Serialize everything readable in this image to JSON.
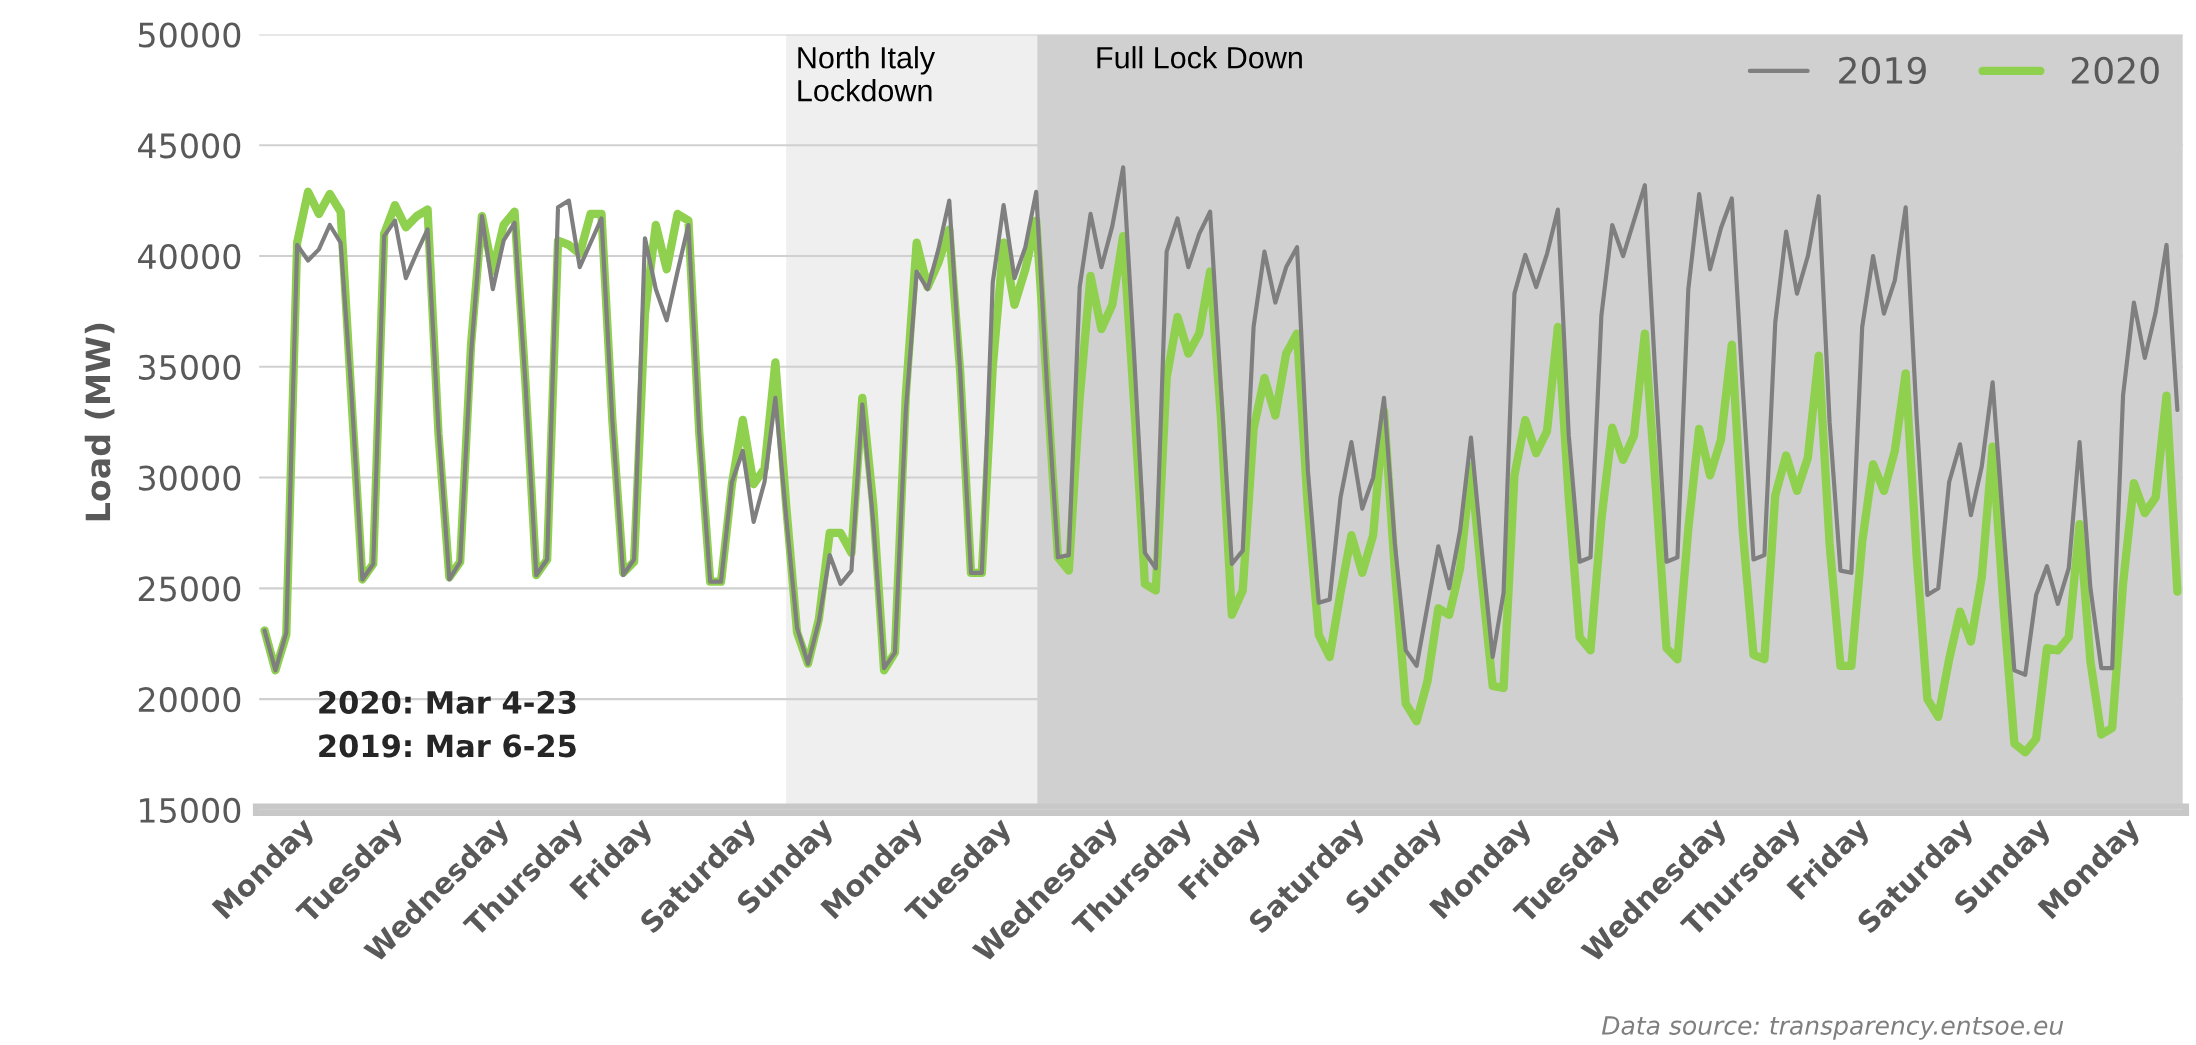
{
  "chart_data": {
    "type": "line",
    "ylabel": "Load (MW)",
    "ylim": [
      15000,
      50000
    ],
    "yticks": [
      15000,
      20000,
      25000,
      30000,
      35000,
      40000,
      45000,
      50000
    ],
    "categories": [
      "Monday",
      null,
      null,
      null,
      null,
      null,
      null,
      null,
      "Tuesday",
      null,
      null,
      null,
      null,
      null,
      null,
      null,
      "Wednesday",
      null,
      null,
      null,
      null,
      null,
      null,
      null,
      "Thursday",
      null,
      null,
      null,
      null,
      null,
      null,
      null,
      "Friday",
      null,
      null,
      null,
      null,
      null,
      null,
      null,
      "Saturday",
      null,
      null,
      null,
      null,
      null,
      null,
      null,
      "Sunday",
      null,
      null,
      null,
      null,
      null,
      null,
      null,
      "Monday",
      null,
      null,
      null,
      null,
      null,
      null,
      null,
      "Tuesday",
      null,
      null,
      null,
      null,
      null,
      null,
      null,
      "Wednesday",
      null,
      null,
      null,
      null,
      null,
      null,
      null,
      "Thursday",
      null,
      null,
      null,
      null,
      null,
      null,
      null,
      "Friday",
      null,
      null,
      null,
      null,
      null,
      null,
      null,
      "Saturday",
      null,
      null,
      null,
      null,
      null,
      null,
      null,
      "Sunday",
      null,
      null,
      null,
      null,
      null,
      null,
      null,
      "Monday",
      null,
      null,
      null,
      null,
      null,
      null,
      null,
      "Tuesday",
      null,
      null,
      null,
      null,
      null,
      null,
      null,
      "Wednesday",
      null,
      null,
      null,
      null,
      null,
      null,
      null,
      "Thursday",
      null,
      null,
      null,
      null,
      null,
      null,
      null,
      "Friday",
      null,
      null,
      null,
      null,
      null,
      null,
      null,
      "Saturday",
      null,
      null,
      null,
      null,
      null,
      null,
      null,
      "Sunday",
      null,
      null,
      null,
      null,
      null,
      null,
      null,
      "Monday",
      null,
      null,
      null,
      null,
      null,
      null,
      null,
      null
    ],
    "grid": "y",
    "legend": "top right",
    "marker": "none",
    "line_style": "solid",
    "annotations": [
      "2020: Mar 4-23\n2019: Mar 6-25",
      "Data source: transparency.entsoe.eu",
      "North Italy\nLockdown",
      "Full Lock Down"
    ],
    "series": [
      {
        "name": "2019",
        "color": "#7f7f7f",
        "values": [
          23100,
          21300,
          23000,
          40500,
          39800,
          40300,
          41400,
          40600,
          33800,
          25400,
          26100,
          40900,
          41600,
          39000,
          40150,
          41200,
          32200,
          25400,
          26200,
          35600,
          41800,
          38500,
          40700,
          41500,
          34300,
          25600,
          26300,
          42200,
          42500,
          39500,
          40600,
          41700,
          32600,
          25600,
          26300,
          40800,
          38500,
          37100,
          39300,
          41400,
          32000,
          25300,
          25300,
          29800,
          31200,
          28000,
          29800,
          33600,
          28200,
          23200,
          21600,
          23500,
          26500,
          25200,
          25800,
          33300,
          28000,
          21400,
          22100,
          33000,
          39300,
          38500,
          40300,
          42500,
          34800,
          25700,
          25700,
          38800,
          42300,
          39000,
          40400,
          42900,
          34100,
          26400,
          26500,
          38600,
          41900,
          39500,
          41350,
          44000,
          35600,
          26600,
          25900,
          40200,
          41700,
          39500,
          41000,
          42000,
          34000,
          26100,
          26700,
          36800,
          40200,
          37900,
          39500,
          40400,
          30300,
          24350,
          24500,
          29100,
          31600,
          28600,
          30000,
          33600,
          27000,
          22200,
          21500,
          24200,
          26900,
          25000,
          27600,
          31800,
          26700,
          21900,
          24800,
          38300,
          40050,
          38600,
          40100,
          42100,
          31900,
          26200,
          26400,
          37300,
          41400,
          40000,
          41600,
          43200,
          34300,
          26200,
          26400,
          38500,
          42800,
          39400,
          41250,
          42600,
          34100,
          26300,
          26500,
          37000,
          41100,
          38300,
          40000,
          42700,
          32500,
          25800,
          25700,
          36800,
          40000,
          37400,
          38900,
          42200,
          32800,
          24700,
          25000,
          29800,
          31500,
          28300,
          30500,
          34300,
          27700,
          21300,
          21100,
          24700,
          26000,
          24300,
          25900,
          31600,
          25000,
          21400,
          21400,
          33700,
          37900,
          35400,
          37450,
          40500,
          33050
        ]
      },
      {
        "name": "2020",
        "color": "#8fd14f",
        "values": [
          23100,
          21300,
          22900,
          40600,
          42900,
          41900,
          42800,
          42000,
          33500,
          25400,
          26100,
          41000,
          42300,
          41300,
          41800,
          42100,
          32000,
          25500,
          26200,
          36000,
          41800,
          39300,
          41400,
          42000,
          34300,
          25600,
          26300,
          40700,
          40500,
          40100,
          41900,
          41900,
          32600,
          25700,
          26200,
          37400,
          41400,
          39400,
          41900,
          41600,
          32000,
          25300,
          25300,
          29700,
          32600,
          29700,
          30400,
          35200,
          28700,
          23000,
          21600,
          23600,
          27500,
          27500,
          26600,
          33600,
          28800,
          21300,
          22100,
          33700,
          40600,
          38600,
          39700,
          41200,
          34800,
          25700,
          25700,
          35000,
          40600,
          37800,
          39400,
          41600,
          34100,
          26400,
          25800,
          33600,
          39100,
          36700,
          37800,
          40900,
          33400,
          25200,
          24900,
          34500,
          37250,
          35600,
          36500,
          39300,
          32700,
          23800,
          24900,
          32200,
          34500,
          32800,
          35600,
          36500,
          28600,
          22900,
          21900,
          24800,
          27400,
          25700,
          27400,
          33000,
          25800,
          19800,
          19000,
          20800,
          24100,
          23800,
          25900,
          30500,
          25400,
          20600,
          20500,
          30100,
          32600,
          31100,
          32100,
          36800,
          29100,
          22800,
          22200,
          28100,
          32250,
          30800,
          31900,
          36500,
          29600,
          22300,
          21800,
          27700,
          32200,
          30100,
          31700,
          36000,
          27650,
          22000,
          21800,
          29200,
          31000,
          29400,
          30900,
          35500,
          27000,
          21500,
          21500,
          27100,
          30600,
          29400,
          31200,
          34700,
          26500,
          20000,
          19200,
          21800,
          23950,
          22600,
          25500,
          31400,
          24200,
          18000,
          17600,
          18200,
          22300,
          22200,
          22800,
          27900,
          21700,
          18400,
          18700,
          25200,
          29750,
          28400,
          29100,
          33700,
          24850
        ]
      }
    ]
  }
}
